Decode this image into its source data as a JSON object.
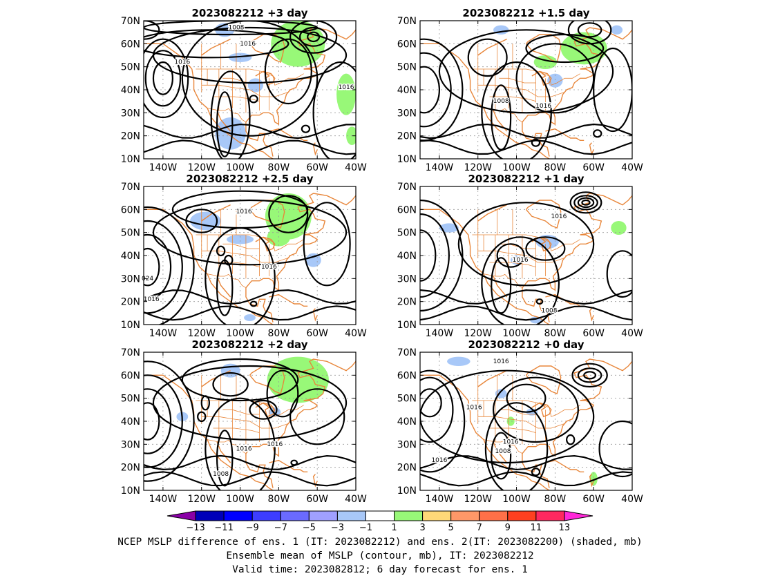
{
  "panels": [
    {
      "title": "2023082212  +3 day",
      "contour_labels": [
        "1008",
        "1016",
        "1016",
        "1016"
      ],
      "contours": [
        {
          "lon": -150,
          "lat": 66,
          "rx": 8,
          "ry": 4
        },
        {
          "lon": -105,
          "lat": 67,
          "rx": 45,
          "ry": 3
        },
        {
          "lon": -115,
          "lat": 60,
          "rx": 40,
          "ry": 6
        },
        {
          "lon": -95,
          "lat": 55,
          "rx": 50,
          "ry": 12
        },
        {
          "lon": -140,
          "lat": 45,
          "rx": 9,
          "ry": 12
        },
        {
          "lon": -140,
          "lat": 45,
          "rx": 5,
          "ry": 7
        },
        {
          "lon": -140,
          "lat": 45,
          "rx": 13,
          "ry": 17
        },
        {
          "lon": -62,
          "lat": 63,
          "rx": 3,
          "ry": 2
        },
        {
          "lon": -62,
          "lat": 63,
          "rx": 7,
          "ry": 4
        },
        {
          "lon": -62,
          "lat": 63,
          "rx": 12,
          "ry": 7
        },
        {
          "lon": -75,
          "lat": 48,
          "rx": 12,
          "ry": 14
        },
        {
          "lon": -95,
          "lat": 45,
          "rx": 35,
          "ry": 25
        },
        {
          "lon": -108,
          "lat": 25,
          "rx": 4,
          "ry": 14
        },
        {
          "lon": -105,
          "lat": 28,
          "rx": 10,
          "ry": 20
        },
        {
          "lon": -93,
          "lat": 36,
          "rx": 2,
          "ry": 1.5
        },
        {
          "lon": -66,
          "lat": 23,
          "rx": 2,
          "ry": 1.5
        },
        {
          "lon": -48,
          "lat": 30,
          "rx": 14,
          "ry": 22
        }
      ],
      "green": [
        {
          "lon": -70,
          "lat": 60,
          "rx": 14,
          "ry": 10
        },
        {
          "lon": -45,
          "lat": 38,
          "rx": 5,
          "ry": 9
        },
        {
          "lon": -42,
          "lat": 20,
          "rx": 3,
          "ry": 4
        }
      ],
      "blue": [
        {
          "lon": -105,
          "lat": 21,
          "rx": 8,
          "ry": 7
        },
        {
          "lon": -108,
          "lat": 66,
          "rx": 5,
          "ry": 3
        },
        {
          "lon": -100,
          "lat": 54,
          "rx": 6,
          "ry": 2
        },
        {
          "lon": -92,
          "lat": 42,
          "rx": 4,
          "ry": 3
        }
      ]
    },
    {
      "title": "2023082212  +1.5 day",
      "contour_labels": [
        "1008",
        "1016"
      ],
      "contours": [
        {
          "lon": -148,
          "lat": 40,
          "rx": 8,
          "ry": 10
        },
        {
          "lon": -148,
          "lat": 40,
          "rx": 14,
          "ry": 16
        },
        {
          "lon": -148,
          "lat": 40,
          "rx": 20,
          "ry": 22
        },
        {
          "lon": -62,
          "lat": 66,
          "rx": 6,
          "ry": 3
        },
        {
          "lon": -62,
          "lat": 66,
          "rx": 11,
          "ry": 6
        },
        {
          "lon": -115,
          "lat": 54,
          "rx": 10,
          "ry": 8
        },
        {
          "lon": -80,
          "lat": 45,
          "rx": 20,
          "ry": 15
        },
        {
          "lon": -95,
          "lat": 48,
          "rx": 45,
          "ry": 18
        },
        {
          "lon": -108,
          "lat": 28,
          "rx": 5,
          "ry": 14
        },
        {
          "lon": -100,
          "lat": 30,
          "rx": 18,
          "ry": 22
        },
        {
          "lon": -90,
          "lat": 17,
          "rx": 2,
          "ry": 1.5
        },
        {
          "lon": -58,
          "lat": 21,
          "rx": 2,
          "ry": 1.5
        },
        {
          "lon": -50,
          "lat": 40,
          "rx": 10,
          "ry": 18
        },
        {
          "lon": -75,
          "lat": 58,
          "rx": 20,
          "ry": 6
        }
      ],
      "green": [
        {
          "lon": -65,
          "lat": 58,
          "rx": 12,
          "ry": 7
        },
        {
          "lon": -85,
          "lat": 52,
          "rx": 6,
          "ry": 3
        }
      ],
      "blue": [
        {
          "lon": -108,
          "lat": 66,
          "rx": 4,
          "ry": 2
        },
        {
          "lon": -80,
          "lat": 44,
          "rx": 4,
          "ry": 3
        },
        {
          "lon": -48,
          "lat": 66,
          "rx": 3,
          "ry": 2
        }
      ]
    },
    {
      "title": "2023082212  +2.5 day",
      "contour_labels": [
        "1016",
        "1016",
        "024",
        "1016"
      ],
      "contours": [
        {
          "lon": -148,
          "lat": 35,
          "rx": 6,
          "ry": 8
        },
        {
          "lon": -148,
          "lat": 35,
          "rx": 12,
          "ry": 14
        },
        {
          "lon": -148,
          "lat": 35,
          "rx": 18,
          "ry": 20
        },
        {
          "lon": -148,
          "lat": 35,
          "rx": 24,
          "ry": 26
        },
        {
          "lon": -75,
          "lat": 58,
          "rx": 10,
          "ry": 8
        },
        {
          "lon": -100,
          "lat": 60,
          "rx": 35,
          "ry": 8
        },
        {
          "lon": -95,
          "lat": 50,
          "rx": 50,
          "ry": 14
        },
        {
          "lon": -110,
          "lat": 42,
          "rx": 2,
          "ry": 2
        },
        {
          "lon": -106,
          "lat": 38,
          "rx": 2,
          "ry": 2
        },
        {
          "lon": -108,
          "lat": 26,
          "rx": 4,
          "ry": 12
        },
        {
          "lon": -100,
          "lat": 30,
          "rx": 18,
          "ry": 22
        },
        {
          "lon": -93,
          "lat": 19,
          "rx": 1.5,
          "ry": 1
        },
        {
          "lon": -55,
          "lat": 45,
          "rx": 12,
          "ry": 18
        },
        {
          "lon": -120,
          "lat": 55,
          "rx": 8,
          "ry": 5
        }
      ],
      "green": [
        {
          "lon": -75,
          "lat": 57,
          "rx": 12,
          "ry": 10
        },
        {
          "lon": -80,
          "lat": 48,
          "rx": 6,
          "ry": 4
        }
      ],
      "blue": [
        {
          "lon": -118,
          "lat": 55,
          "rx": 8,
          "ry": 4
        },
        {
          "lon": -100,
          "lat": 47,
          "rx": 7,
          "ry": 2
        },
        {
          "lon": -62,
          "lat": 38,
          "rx": 4,
          "ry": 3
        },
        {
          "lon": -95,
          "lat": 13,
          "rx": 3,
          "ry": 1.5
        }
      ]
    },
    {
      "title": "2023082212  +1 day",
      "contour_labels": [
        "1016",
        "1016",
        "1008"
      ],
      "contours": [
        {
          "lon": -150,
          "lat": 40,
          "rx": 8,
          "ry": 11
        },
        {
          "lon": -150,
          "lat": 40,
          "rx": 15,
          "ry": 18
        },
        {
          "lon": -150,
          "lat": 40,
          "rx": 22,
          "ry": 24
        },
        {
          "lon": -64,
          "lat": 63,
          "rx": 2,
          "ry": 1
        },
        {
          "lon": -64,
          "lat": 63,
          "rx": 4,
          "ry": 2
        },
        {
          "lon": -64,
          "lat": 63,
          "rx": 6,
          "ry": 3
        },
        {
          "lon": -64,
          "lat": 63,
          "rx": 8,
          "ry": 4.5
        },
        {
          "lon": -103,
          "lat": 40,
          "rx": 7,
          "ry": 5
        },
        {
          "lon": -95,
          "lat": 45,
          "rx": 35,
          "ry": 18
        },
        {
          "lon": -108,
          "lat": 27,
          "rx": 5,
          "ry": 12
        },
        {
          "lon": -98,
          "lat": 28,
          "rx": 20,
          "ry": 20
        },
        {
          "lon": -88,
          "lat": 20,
          "rx": 1.5,
          "ry": 1
        },
        {
          "lon": -45,
          "lat": 32,
          "rx": 8,
          "ry": 10
        },
        {
          "lon": -85,
          "lat": 43,
          "rx": 10,
          "ry": 5
        }
      ],
      "green": [
        {
          "lon": -47,
          "lat": 52,
          "rx": 4,
          "ry": 3
        }
      ],
      "blue": [
        {
          "lon": -135,
          "lat": 52,
          "rx": 5,
          "ry": 2
        },
        {
          "lon": -84,
          "lat": 46,
          "rx": 6,
          "ry": 3
        },
        {
          "lon": -100,
          "lat": 38,
          "rx": 3,
          "ry": 2
        },
        {
          "lon": -90,
          "lat": 12,
          "rx": 3,
          "ry": 1.5
        }
      ]
    },
    {
      "title": "2023082212  +2 day",
      "contour_labels": [
        "1016",
        "1016",
        "1008"
      ],
      "contours": [
        {
          "lon": -148,
          "lat": 40,
          "rx": 6,
          "ry": 8
        },
        {
          "lon": -148,
          "lat": 40,
          "rx": 12,
          "ry": 14
        },
        {
          "lon": -148,
          "lat": 40,
          "rx": 18,
          "ry": 20
        },
        {
          "lon": -148,
          "lat": 40,
          "rx": 24,
          "ry": 26
        },
        {
          "lon": -78,
          "lat": 52,
          "rx": 8,
          "ry": 10
        },
        {
          "lon": -105,
          "lat": 56,
          "rx": 9,
          "ry": 5
        },
        {
          "lon": -100,
          "lat": 58,
          "rx": 30,
          "ry": 9
        },
        {
          "lon": -88,
          "lat": 45,
          "rx": 7,
          "ry": 4
        },
        {
          "lon": -95,
          "lat": 48,
          "rx": 50,
          "ry": 16
        },
        {
          "lon": -108,
          "lat": 24,
          "rx": 4,
          "ry": 12
        },
        {
          "lon": -100,
          "lat": 28,
          "rx": 18,
          "ry": 22
        },
        {
          "lon": -118,
          "lat": 48,
          "rx": 2,
          "ry": 3
        },
        {
          "lon": -120,
          "lat": 42,
          "rx": 2,
          "ry": 2
        },
        {
          "lon": -60,
          "lat": 42,
          "rx": 14,
          "ry": 12
        },
        {
          "lon": -72,
          "lat": 22,
          "rx": 1.5,
          "ry": 1
        }
      ],
      "green": [
        {
          "lon": -70,
          "lat": 58,
          "rx": 16,
          "ry": 10
        }
      ],
      "blue": [
        {
          "lon": -130,
          "lat": 42,
          "rx": 3,
          "ry": 2
        },
        {
          "lon": -105,
          "lat": 62,
          "rx": 5,
          "ry": 3
        },
        {
          "lon": -82,
          "lat": 44,
          "rx": 3,
          "ry": 2
        }
      ]
    },
    {
      "title": "2023082212  +0 day",
      "contour_labels": [
        "1016",
        "1016",
        "1016",
        "1008",
        "1016"
      ],
      "contours": [
        {
          "lon": -145,
          "lat": 48,
          "rx": 6,
          "ry": 6
        },
        {
          "lon": -145,
          "lat": 45,
          "rx": 12,
          "ry": 14
        },
        {
          "lon": -145,
          "lat": 40,
          "rx": 18,
          "ry": 22
        },
        {
          "lon": -62,
          "lat": 60,
          "rx": 3,
          "ry": 1.5
        },
        {
          "lon": -62,
          "lat": 60,
          "rx": 6,
          "ry": 3
        },
        {
          "lon": -62,
          "lat": 60,
          "rx": 9,
          "ry": 5
        },
        {
          "lon": -95,
          "lat": 50,
          "rx": 10,
          "ry": 6
        },
        {
          "lon": -90,
          "lat": 45,
          "rx": 22,
          "ry": 14
        },
        {
          "lon": -105,
          "lat": 42,
          "rx": 45,
          "ry": 20
        },
        {
          "lon": -108,
          "lat": 25,
          "rx": 5,
          "ry": 10
        },
        {
          "lon": -100,
          "lat": 28,
          "rx": 16,
          "ry": 20
        },
        {
          "lon": -90,
          "lat": 18,
          "rx": 2,
          "ry": 1.5
        },
        {
          "lon": -45,
          "lat": 28,
          "rx": 12,
          "ry": 12
        },
        {
          "lon": -72,
          "lat": 32,
          "rx": 2,
          "ry": 2
        }
      ],
      "green": [
        {
          "lon": -60,
          "lat": 15,
          "rx": 2,
          "ry": 3
        },
        {
          "lon": -103,
          "lat": 40,
          "rx": 2,
          "ry": 2
        }
      ],
      "blue": [
        {
          "lon": -130,
          "lat": 66,
          "rx": 6,
          "ry": 2
        },
        {
          "lon": -108,
          "lat": 52,
          "rx": 3,
          "ry": 2
        },
        {
          "lon": -92,
          "lat": 44,
          "rx": 3,
          "ry": 1.5
        }
      ]
    }
  ],
  "axes": {
    "lon_min": -150,
    "lon_max": -40,
    "lat_min": 10,
    "lat_max": 70,
    "xtick_values": [
      -140,
      -120,
      -100,
      -80,
      -60,
      -40
    ],
    "xtick_labels": [
      "140W",
      "120W",
      "100W",
      "80W",
      "60W",
      "40W"
    ],
    "ytick_values": [
      70,
      60,
      50,
      40,
      30,
      20,
      10
    ],
    "ytick_labels": [
      "70N",
      "60N",
      "50N",
      "40N",
      "30N",
      "20N",
      "10N"
    ]
  },
  "colorbar": {
    "labels": [
      "−13",
      "−11",
      "−9",
      "−7",
      "−5",
      "−3",
      "−1",
      "1",
      "3",
      "5",
      "7",
      "9",
      "11",
      "13"
    ],
    "colors": [
      "#8a00a6",
      "#0000b8",
      "#0000ff",
      "#3d3dff",
      "#6a6aff",
      "#a0a0ff",
      "#a8c8f8",
      "#ffffff",
      "#98f878",
      "#ffd878",
      "#ff9868",
      "#ff7048",
      "#ff4020",
      "#ff2860",
      "#ff28d8"
    ]
  },
  "colors": {
    "coast": "#e8863a",
    "contour": "#000000",
    "grid": "#999999",
    "shade_positive": "#98f878",
    "shade_negative": "#a8c8f8"
  },
  "captions": [
    "NCEP MSLP difference of ens. 1 (IT: 2023082212) and ens. 2(IT: 2023082200) (shaded, mb)",
    "Ensemble mean of MSLP (contour, mb), IT: 2023082212",
    "Valid time: 2023082812; 6 day forecast for ens. 1"
  ]
}
